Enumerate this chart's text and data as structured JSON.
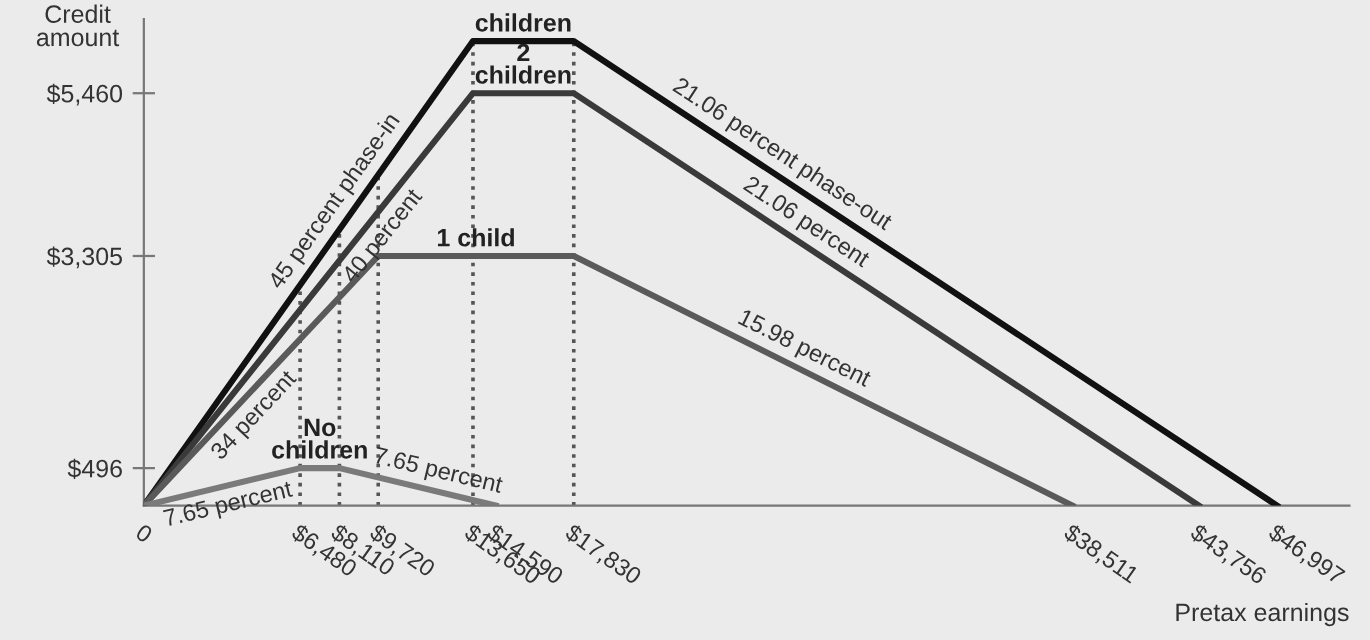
{
  "chart_data": {
    "type": "line",
    "xlabel": "Pretax earnings",
    "ylabel": "Credit amount",
    "series": [
      {
        "name": "children",
        "color": "#111111",
        "x": [
          0,
          13650,
          17830,
          46997
        ],
        "values": [
          0,
          6150,
          6150,
          0
        ]
      },
      {
        "name": "2 children",
        "color": "#3a3a3a",
        "x": [
          0,
          13650,
          17830,
          43756
        ],
        "values": [
          0,
          5460,
          5460,
          0
        ]
      },
      {
        "name": "1 child",
        "color": "#5a5a5a",
        "x": [
          0,
          9720,
          17830,
          38511
        ],
        "values": [
          0,
          3305,
          3305,
          0
        ]
      },
      {
        "name": "No children",
        "color": "#7a7a7a",
        "x": [
          0,
          6480,
          8110,
          14590
        ],
        "values": [
          0,
          496,
          496,
          0
        ]
      }
    ],
    "xlim": [
      0,
      50000
    ],
    "ylim": [
      0,
      6440
    ],
    "xticks": [
      {
        "value": 0,
        "label": "0"
      },
      {
        "value": 6480,
        "label": "$6,480"
      },
      {
        "value": 8110,
        "label": "$8,110"
      },
      {
        "value": 9720,
        "label": "$9,720"
      },
      {
        "value": 13650,
        "label": "$13,650"
      },
      {
        "value": 14590,
        "label": "$14,590"
      },
      {
        "value": 17830,
        "label": "$17,830"
      },
      {
        "value": 38511,
        "label": "$38,511"
      },
      {
        "value": 43756,
        "label": "$43,756"
      },
      {
        "value": 46997,
        "label": "$46,997"
      }
    ],
    "yticks": [
      {
        "value": 496,
        "label": "$496"
      },
      {
        "value": 3305,
        "label": "$3,305"
      },
      {
        "value": 5460,
        "label": "$5,460"
      }
    ],
    "ref_lines": [
      {
        "axis": "x",
        "value": 6480,
        "line_style": "dotted",
        "color": "#555555"
      },
      {
        "axis": "x",
        "value": 8110,
        "line_style": "dotted",
        "color": "#555555"
      },
      {
        "axis": "x",
        "value": 9720,
        "line_style": "dotted",
        "color": "#555555"
      },
      {
        "axis": "x",
        "value": 13650,
        "line_style": "dotted",
        "color": "#555555"
      },
      {
        "axis": "x",
        "value": 17830,
        "line_style": "dotted",
        "color": "#555555"
      }
    ],
    "annotations": [
      {
        "text": "45 percent phase-in",
        "x": 8600,
        "y": 3875
      },
      {
        "text": "40 percent",
        "x": 9300,
        "y": 3720
      },
      {
        "text": "34 percent",
        "x": 4000,
        "y": 1360
      },
      {
        "text": "7.65 percent",
        "x": 3300,
        "y": 253
      },
      {
        "text": "7.65 percent",
        "x": 12000,
        "y": 198
      },
      {
        "text": "21.06 percent phase-out",
        "x": 26000,
        "y": 4428
      },
      {
        "text": "21.06 percent",
        "x": 27000,
        "y": 3529
      },
      {
        "text": "15.98 percent",
        "x": 27000,
        "y": 1840
      }
    ],
    "grid": false,
    "legend": false,
    "marker": "none",
    "line_style": "solid"
  }
}
